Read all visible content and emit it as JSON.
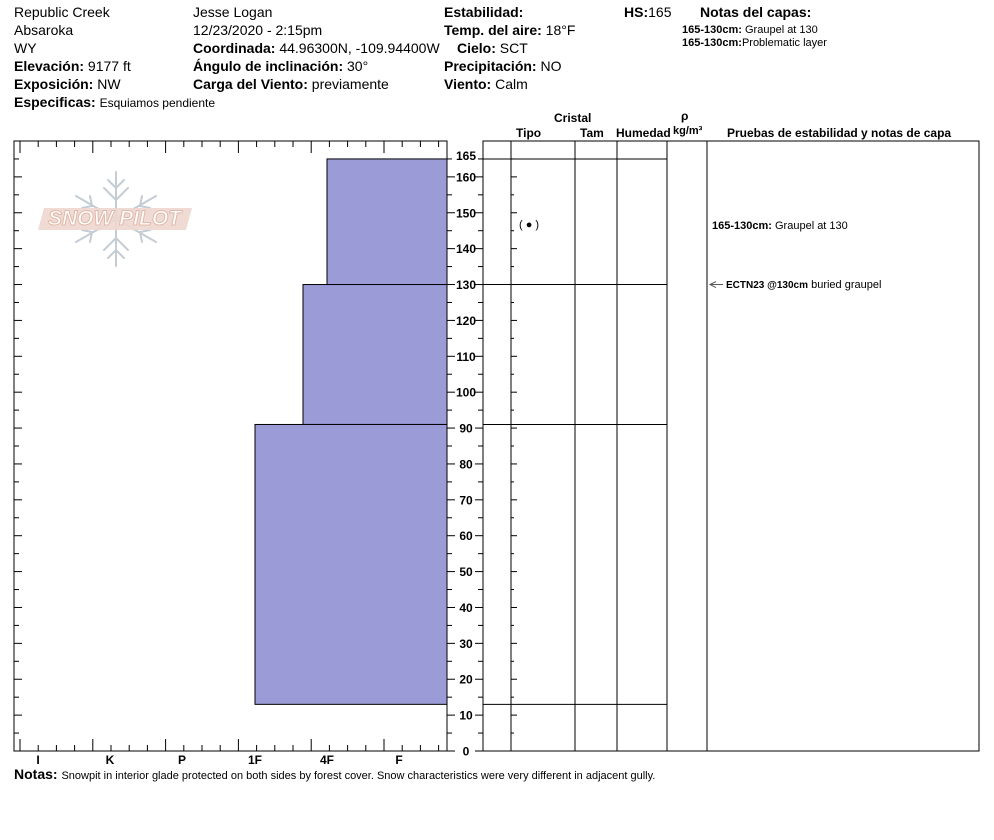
{
  "header": {
    "location": "Republic Creek",
    "range": "Absaroka",
    "state": "WY",
    "elevation_label": "Elevación:",
    "elevation_value": "9177 ft",
    "aspect_label": "Exposición:",
    "aspect_value": "NW",
    "specifics_label": "Especificas:",
    "specifics_value": "Esquiamos pendiente",
    "observer": "Jesse Logan",
    "datetime": "12/23/2020 - 2:15pm",
    "coord_label": "Coordinada:",
    "coord_value": "44.96300N, -109.94400W",
    "slope_label": "Ángulo de inclinación:",
    "slope_value": "30°",
    "wind_load_label": "Carga del Viento:",
    "wind_load_value": "previamente",
    "stability_label": "Estabilidad:",
    "air_temp_label": "Temp. del aire:",
    "air_temp_value": "18°F",
    "sky_label": "Cielo:",
    "sky_value": "SCT",
    "precip_label": "Precipitación:",
    "precip_value": "NO",
    "wind_label": "Viento:",
    "wind_value": "Calm",
    "hs_label": "HS:",
    "hs_value": "165",
    "layer_notes_label": "Notas del capas:",
    "layer_notes": [
      {
        "range": "165-130cm:",
        "text": "Graupel at 130"
      },
      {
        "range": "165-130cm:",
        "text": "Problematic layer"
      }
    ]
  },
  "logo": {
    "text": "SNOW PILOT"
  },
  "columns": {
    "crystal": "Cristal",
    "type": "Tipo",
    "size": "Tam",
    "moisture": "Humedad",
    "rho": "ρ",
    "density_unit": "kg/m³",
    "tests": "Pruebas de estabilidad y notas de capa"
  },
  "layer_annotation": {
    "range": "165-130cm:",
    "text": "Graupel at 130"
  },
  "test_annotation": {
    "code": "ECTN23 @130cm",
    "text": "buried graupel"
  },
  "grain_symbol": "( ● )",
  "footer": {
    "label": "Notas:",
    "text": "Snowpit in interior glade protected on both sides by forest cover. Snow characteristics were very different in adjacent gully."
  },
  "chart_data": {
    "type": "snow-profile",
    "fill_color": "#9b9bd7",
    "y_axis": {
      "unit": "cm",
      "range": [
        0,
        170
      ],
      "ticks": [
        0,
        10,
        20,
        30,
        40,
        50,
        60,
        70,
        80,
        90,
        100,
        110,
        120,
        130,
        140,
        150,
        160,
        165
      ]
    },
    "x_axis": {
      "categories": [
        "I",
        "K",
        "P",
        "1F",
        "4F",
        "F"
      ],
      "scale_right_to_left": true
    },
    "layers": [
      {
        "top": 165,
        "bottom": 130,
        "hardness": "4F"
      },
      {
        "top": 130,
        "bottom": 91,
        "hardness": "4F-"
      },
      {
        "top": 91,
        "bottom": 13,
        "hardness": "1F"
      }
    ],
    "layer_boundaries": [
      165,
      130,
      91,
      13
    ],
    "grain": {
      "symbol": "graupel",
      "depth_cm": 147
    },
    "test_depth_cm": 130
  }
}
